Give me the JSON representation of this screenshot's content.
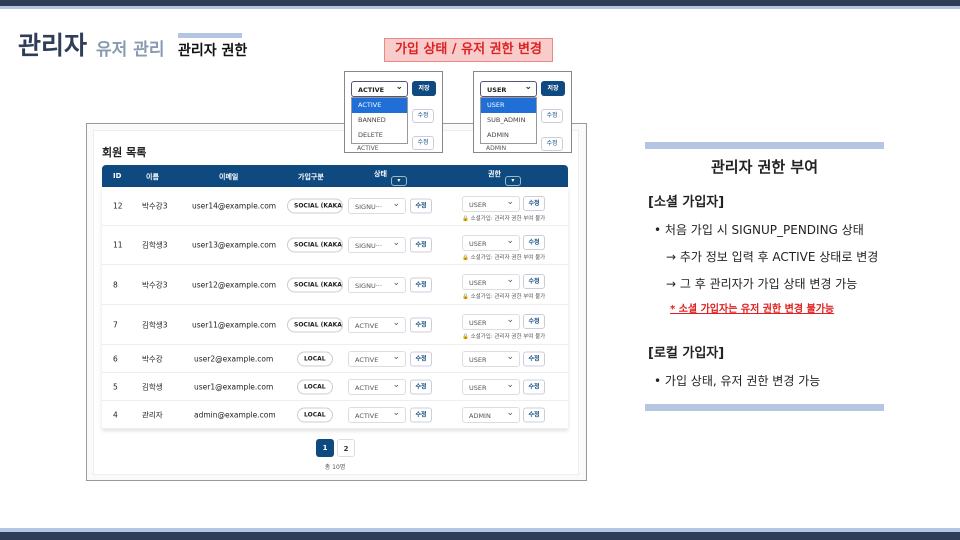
{
  "slide": {
    "title": "관리자",
    "subtitle": "유저 관리",
    "section": "관리자 권한",
    "callout": "가입 상태 / 유저 권한 변경"
  },
  "popups": {
    "status": {
      "selected": "ACTIVE",
      "save": "저장",
      "options": [
        "ACTIVE",
        "BANNED",
        "DELETE"
      ],
      "edit": "수정",
      "behind": "ACTIVE"
    },
    "role": {
      "selected": "USER",
      "save": "저장",
      "options": [
        "USER",
        "SUB_ADMIN",
        "ADMIN"
      ],
      "edit": "수정",
      "behind": "ADMIN"
    }
  },
  "table": {
    "section_title": "회원 목록",
    "headers": [
      "ID",
      "이름",
      "이메일",
      "가입구분",
      "상태",
      "권한"
    ],
    "filter_icon": "▾",
    "edit_label": "수정",
    "note": "소셜가입: 관리자 권한 부여 불가",
    "rows": [
      {
        "id": "12",
        "name": "박수강3",
        "email": "user14@example.com",
        "type": "SOCIAL (KAKAO)",
        "status": "SIGNU···",
        "role": "USER",
        "note": true
      },
      {
        "id": "11",
        "name": "김학생3",
        "email": "user13@example.com",
        "type": "SOCIAL (KAKAO)",
        "status": "SIGNU···",
        "role": "USER",
        "note": true
      },
      {
        "id": "8",
        "name": "박수강3",
        "email": "user12@example.com",
        "type": "SOCIAL (KAKAO)",
        "status": "SIGNU···",
        "role": "USER",
        "note": true
      },
      {
        "id": "7",
        "name": "김학생3",
        "email": "user11@example.com",
        "type": "SOCIAL (KAKAO)",
        "status": "ACTIVE",
        "role": "USER",
        "note": true
      },
      {
        "id": "6",
        "name": "박수강",
        "email": "user2@example.com",
        "type": "LOCAL",
        "status": "ACTIVE",
        "role": "USER",
        "note": false
      },
      {
        "id": "5",
        "name": "김학생",
        "email": "user1@example.com",
        "type": "LOCAL",
        "status": "ACTIVE",
        "role": "USER",
        "note": false
      },
      {
        "id": "4",
        "name": "관리자",
        "email": "admin@example.com",
        "type": "LOCAL",
        "status": "ACTIVE",
        "role": "ADMIN",
        "note": false
      }
    ],
    "pages": [
      "1",
      "2"
    ],
    "current_page": "1",
    "total": "총 10명"
  },
  "panel": {
    "title": "관리자 권한 부여",
    "social_heading": "[소셜 가입자]",
    "social_items": [
      "처음 가입 시 SIGNUP_PENDING 상태",
      "→ 추가 정보 입력 후 ACTIVE 상태로 변경",
      "→ 그 후 관리자가 가입 상태 변경 가능"
    ],
    "social_warning": "* 소셜 가입자는 유저 권한 변경 불가능",
    "local_heading": "[로컬 가입자]",
    "local_items": [
      "가입 상태, 유저 권한 변경 가능"
    ]
  },
  "colors": {
    "navy": "#0e4a80",
    "accent_light": "#b4c6e2",
    "warning": "#e02020"
  }
}
